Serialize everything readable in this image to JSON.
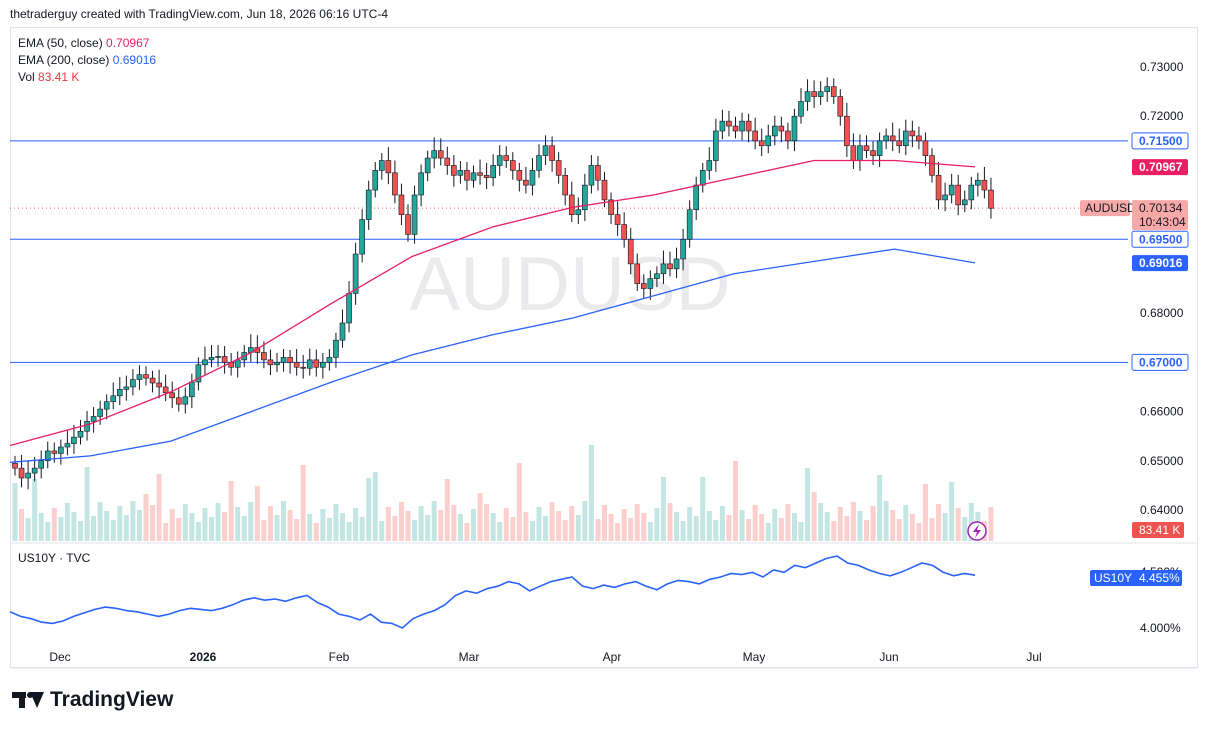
{
  "header": {
    "caption": "thetraderguy created with TradingView.com, Jun 18, 2026 06:16 UTC-4"
  },
  "legend": {
    "ema50_label": "EMA (50, close)",
    "ema50_value": "0.70967",
    "ema200_label": "EMA (200, close)",
    "ema200_value": "0.69016",
    "vol_label": "Vol",
    "vol_value": "83.41 K"
  },
  "watermark": "AUDUSD",
  "price_axis": {
    "ticks": [
      "0.73000",
      "0.72000",
      "0.68000",
      "0.66000",
      "0.65000",
      "0.64000"
    ],
    "badges": [
      {
        "label": "0.71500",
        "color": "#2962ff",
        "kind": "outline"
      },
      {
        "label": "0.70967",
        "color": "#e91e63",
        "kind": "fill"
      },
      {
        "label": "0.69500",
        "color": "#2962ff",
        "kind": "outline"
      },
      {
        "label": "0.69016",
        "color": "#2962ff",
        "kind": "fill-dark"
      },
      {
        "label": "0.67000",
        "color": "#2962ff",
        "kind": "outline"
      }
    ],
    "symbol_tag": "AUDUSD",
    "last_price": "0.70134",
    "countdown": "10:43:04",
    "vol_tag": "83.41 K"
  },
  "time_axis": [
    "Dec",
    "2026",
    "Feb",
    "Mar",
    "Apr",
    "May",
    "Jun",
    "Jul"
  ],
  "sub_pane": {
    "title": "US10Y · TVC",
    "tick_top": "4.500%",
    "tick_bottom": "4.000%",
    "badge_symbol": "US10Y",
    "badge_value": "4.455%"
  },
  "footer": {
    "brand": "TradingView"
  },
  "colors": {
    "bull": "#26a69a",
    "bear": "#ef5350",
    "ema50": "#e91e63",
    "ema200": "#2962ff",
    "hline": "#2962ff",
    "us10y": "#2962ff"
  },
  "chart_data": {
    "type": "candlestick",
    "symbol": "AUDUSD",
    "ylim": [
      0.6355,
      0.7342
    ],
    "horizontal_lines": [
      0.715,
      0.695,
      0.67
    ],
    "x_labels": [
      "Dec",
      "2026",
      "Feb",
      "Mar",
      "Apr",
      "May",
      "Jun",
      "Jul"
    ],
    "ohlc_close": [
      0.6485,
      0.6465,
      0.6475,
      0.6485,
      0.65,
      0.652,
      0.6515,
      0.6528,
      0.6535,
      0.6548,
      0.656,
      0.658,
      0.659,
      0.6605,
      0.662,
      0.6632,
      0.6645,
      0.665,
      0.6665,
      0.6675,
      0.6668,
      0.6658,
      0.665,
      0.6638,
      0.6628,
      0.6615,
      0.663,
      0.666,
      0.6695,
      0.6705,
      0.671,
      0.6712,
      0.67,
      0.669,
      0.6705,
      0.672,
      0.673,
      0.672,
      0.6705,
      0.6695,
      0.67,
      0.671,
      0.67,
      0.669,
      0.6688,
      0.6705,
      0.669,
      0.67,
      0.671,
      0.6745,
      0.678,
      0.684,
      0.692,
      0.699,
      0.705,
      0.709,
      0.711,
      0.7085,
      0.704,
      0.7,
      0.696,
      0.704,
      0.7085,
      0.7115,
      0.713,
      0.7115,
      0.71,
      0.708,
      0.709,
      0.707,
      0.7085,
      0.708,
      0.7075,
      0.71,
      0.712,
      0.711,
      0.709,
      0.707,
      0.706,
      0.709,
      0.712,
      0.714,
      0.711,
      0.708,
      0.704,
      0.7,
      0.701,
      0.706,
      0.71,
      0.707,
      0.703,
      0.7,
      0.698,
      0.695,
      0.69,
      0.686,
      0.685,
      0.687,
      0.688,
      0.69,
      0.689,
      0.691,
      0.695,
      0.701,
      0.706,
      0.709,
      0.711,
      0.717,
      0.719,
      0.718,
      0.717,
      0.719,
      0.717,
      0.715,
      0.714,
      0.716,
      0.718,
      0.717,
      0.715,
      0.72,
      0.723,
      0.725,
      0.724,
      0.725,
      0.726,
      0.724,
      0.72,
      0.714,
      0.711,
      0.714,
      0.713,
      0.712,
      0.715,
      0.716,
      0.715,
      0.714,
      0.717,
      0.716,
      0.715,
      0.712,
      0.708,
      0.703,
      0.704,
      0.706,
      0.702,
      0.703,
      0.706,
      0.707,
      0.705,
      0.7013
    ],
    "ema50": [
      0.6531,
      0.6575,
      0.664,
      0.672,
      0.682,
      0.6915,
      0.6975,
      0.7015,
      0.704,
      0.7075,
      0.711,
      0.711,
      0.7097
    ],
    "ema200": [
      0.6497,
      0.651,
      0.654,
      0.66,
      0.666,
      0.6715,
      0.6756,
      0.679,
      0.6835,
      0.688,
      0.6905,
      0.693,
      0.6902
    ],
    "volume_label": "Vol 83.41 K",
    "us10y": {
      "last": 4.455,
      "ylim": [
        3.92,
        4.58
      ],
      "values": [
        4.14,
        4.1,
        4.08,
        4.05,
        4.04,
        4.06,
        4.1,
        4.13,
        4.16,
        4.18,
        4.17,
        4.15,
        4.14,
        4.12,
        4.1,
        4.12,
        4.15,
        4.17,
        4.16,
        4.15,
        4.17,
        4.2,
        4.24,
        4.26,
        4.24,
        4.25,
        4.23,
        4.26,
        4.28,
        4.22,
        4.18,
        4.12,
        4.1,
        4.07,
        4.12,
        4.05,
        4.04,
        4.0,
        4.08,
        4.12,
        4.15,
        4.2,
        4.28,
        4.32,
        4.3,
        4.34,
        4.36,
        4.4,
        4.38,
        4.32,
        4.36,
        4.4,
        4.42,
        4.44,
        4.36,
        4.34,
        4.37,
        4.35,
        4.38,
        4.4,
        4.36,
        4.33,
        4.38,
        4.41,
        4.4,
        4.38,
        4.42,
        4.44,
        4.47,
        4.46,
        4.48,
        4.44,
        4.5,
        4.48,
        4.54,
        4.52,
        4.56,
        4.6,
        4.62,
        4.56,
        4.54,
        4.5,
        4.47,
        4.45,
        4.48,
        4.52,
        4.56,
        4.54,
        4.48,
        4.45,
        4.47,
        4.455
      ]
    }
  }
}
